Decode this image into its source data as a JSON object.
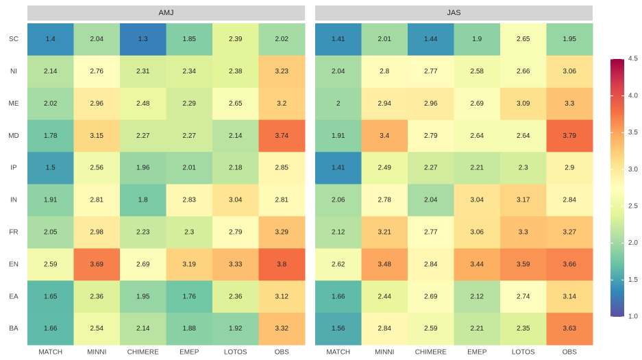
{
  "chart_data": {
    "type": "heatmap",
    "x": [
      "MATCH",
      "MINNI",
      "CHIMERE",
      "EMEP",
      "LOTOS",
      "OBS"
    ],
    "y": [
      "SC",
      "NI",
      "ME",
      "MD",
      "IP",
      "IN",
      "FR",
      "EN",
      "EA",
      "BA"
    ],
    "panels": [
      {
        "title": "AMJ",
        "values": [
          [
            1.4,
            2.04,
            1.3,
            1.85,
            2.39,
            2.02
          ],
          [
            2.14,
            2.76,
            2.31,
            2.34,
            2.38,
            3.23
          ],
          [
            2.02,
            2.96,
            2.48,
            2.29,
            2.65,
            3.2
          ],
          [
            1.78,
            3.15,
            2.27,
            2.27,
            2.14,
            3.74
          ],
          [
            1.5,
            2.56,
            1.96,
            2.01,
            2.18,
            2.85
          ],
          [
            1.91,
            2.81,
            1.8,
            2.83,
            3.04,
            2.81
          ],
          [
            2.05,
            2.98,
            2.23,
            2.3,
            2.79,
            3.29
          ],
          [
            2.59,
            3.69,
            2.69,
            3.19,
            3.33,
            3.8
          ],
          [
            1.65,
            2.36,
            1.95,
            1.76,
            2.36,
            3.12
          ],
          [
            1.66,
            2.54,
            2.14,
            1.88,
            1.92,
            3.32
          ]
        ]
      },
      {
        "title": "JAS",
        "values": [
          [
            1.41,
            2.01,
            1.44,
            1.9,
            2.65,
            1.95
          ],
          [
            2.04,
            2.8,
            2.77,
            2.58,
            2.66,
            3.06
          ],
          [
            2,
            2.94,
            2.96,
            2.69,
            3.09,
            3.3
          ],
          [
            1.91,
            3.4,
            2.79,
            2.64,
            2.64,
            3.79
          ],
          [
            1.41,
            2.49,
            2.27,
            2.21,
            2.3,
            2.9
          ],
          [
            2.06,
            2.78,
            2.04,
            3.04,
            3.17,
            2.84
          ],
          [
            2.12,
            3.21,
            2.77,
            3.06,
            3.3,
            3.27
          ],
          [
            2.62,
            3.48,
            2.84,
            3.44,
            3.59,
            3.66
          ],
          [
            1.66,
            2.44,
            2.69,
            2.12,
            2.74,
            3.14
          ],
          [
            1.56,
            2.84,
            2.59,
            2.21,
            2.35,
            3.63
          ]
        ]
      }
    ],
    "colorbar": {
      "lim": [
        1,
        4.5
      ],
      "ticks": [
        {
          "value": 1,
          "label": "1.0"
        },
        1.5,
        {
          "value": 2,
          "label": "2.0"
        },
        2.5,
        {
          "value": 3,
          "label": "3.0"
        },
        3.5,
        {
          "value": 4,
          "label": "4.0"
        },
        4.5
      ],
      "colors": [
        "#5e4fa2",
        "#3288bd",
        "#66c2a5",
        "#abdda4",
        "#e6f598",
        "#ffffbf",
        "#fee08b",
        "#fdae61",
        "#f46d43",
        "#d53e4f",
        "#9e0142"
      ]
    }
  }
}
